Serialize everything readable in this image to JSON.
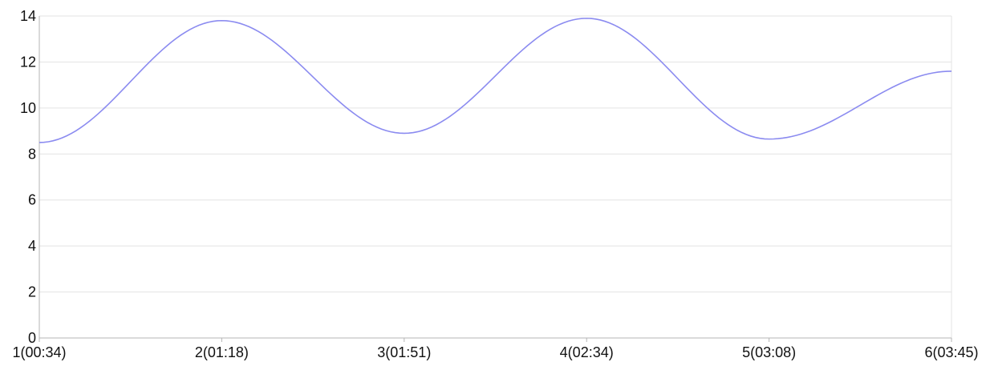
{
  "chart_data": {
    "type": "line",
    "title": "",
    "xlabel": "",
    "ylabel": "",
    "categories": [
      "1(00:34)",
      "2(01:18)",
      "3(01:51)",
      "4(02:34)",
      "5(03:08)",
      "6(03:45)"
    ],
    "series": [
      {
        "values": [
          8.5,
          13.8,
          8.9,
          13.9,
          8.65,
          11.6
        ],
        "color": "#8b8bf0"
      }
    ],
    "ylim": [
      0,
      14
    ],
    "yticks": [
      0,
      2,
      4,
      6,
      8,
      10,
      12,
      14
    ],
    "grid": true,
    "legend": "none",
    "smooth": true
  }
}
